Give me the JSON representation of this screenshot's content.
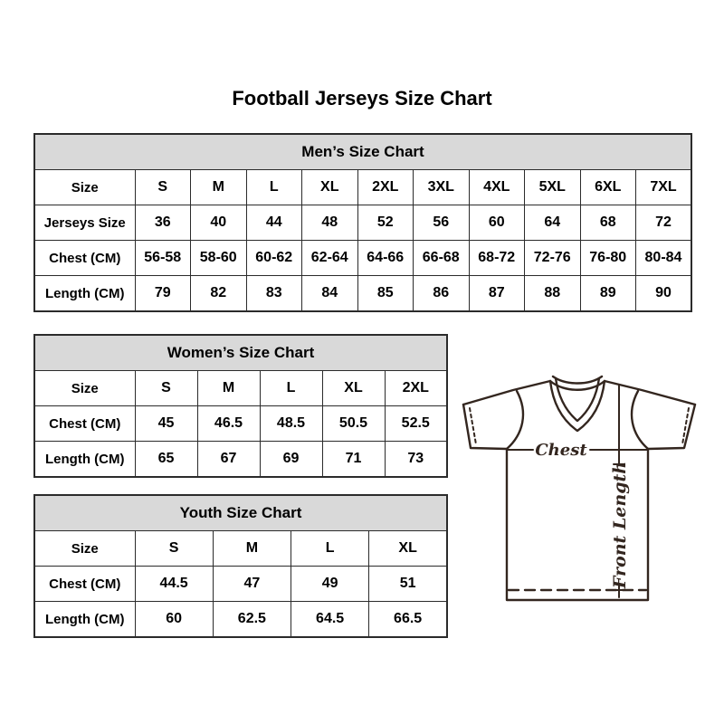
{
  "title": "Football Jerseys Size Chart",
  "tables": {
    "mens": {
      "title": "Men’s Size Chart",
      "rows": [
        {
          "label": "Size",
          "values": [
            "S",
            "M",
            "L",
            "XL",
            "2XL",
            "3XL",
            "4XL",
            "5XL",
            "6XL",
            "7XL"
          ]
        },
        {
          "label": "Jerseys Size",
          "values": [
            "36",
            "40",
            "44",
            "48",
            "52",
            "56",
            "60",
            "64",
            "68",
            "72"
          ]
        },
        {
          "label": "Chest (CM)",
          "values": [
            "56-58",
            "58-60",
            "60-62",
            "62-64",
            "64-66",
            "66-68",
            "68-72",
            "72-76",
            "76-80",
            "80-84"
          ]
        },
        {
          "label": "Length (CM)",
          "values": [
            "79",
            "82",
            "83",
            "84",
            "85",
            "86",
            "87",
            "88",
            "89",
            "90"
          ]
        }
      ]
    },
    "womens": {
      "title": "Women’s Size Chart",
      "rows": [
        {
          "label": "Size",
          "values": [
            "S",
            "M",
            "L",
            "XL",
            "2XL"
          ]
        },
        {
          "label": "Chest (CM)",
          "values": [
            "45",
            "46.5",
            "48.5",
            "50.5",
            "52.5"
          ]
        },
        {
          "label": "Length (CM)",
          "values": [
            "65",
            "67",
            "69",
            "71",
            "73"
          ]
        }
      ]
    },
    "youth": {
      "title": "Youth Size Chart",
      "rows": [
        {
          "label": "Size",
          "values": [
            "S",
            "M",
            "L",
            "XL"
          ]
        },
        {
          "label": "Chest (CM)",
          "values": [
            "44.5",
            "47",
            "49",
            "51"
          ]
        },
        {
          "label": "Length (CM)",
          "values": [
            "60",
            "62.5",
            "64.5",
            "66.5"
          ]
        }
      ]
    }
  },
  "jersey": {
    "chest_label": "Chest",
    "front_length_label": "Front Length"
  },
  "colors": {
    "header_bg": "#d9d9d9",
    "border": "#2b2b2b",
    "text": "#000000",
    "jersey_line": "#33261f"
  }
}
